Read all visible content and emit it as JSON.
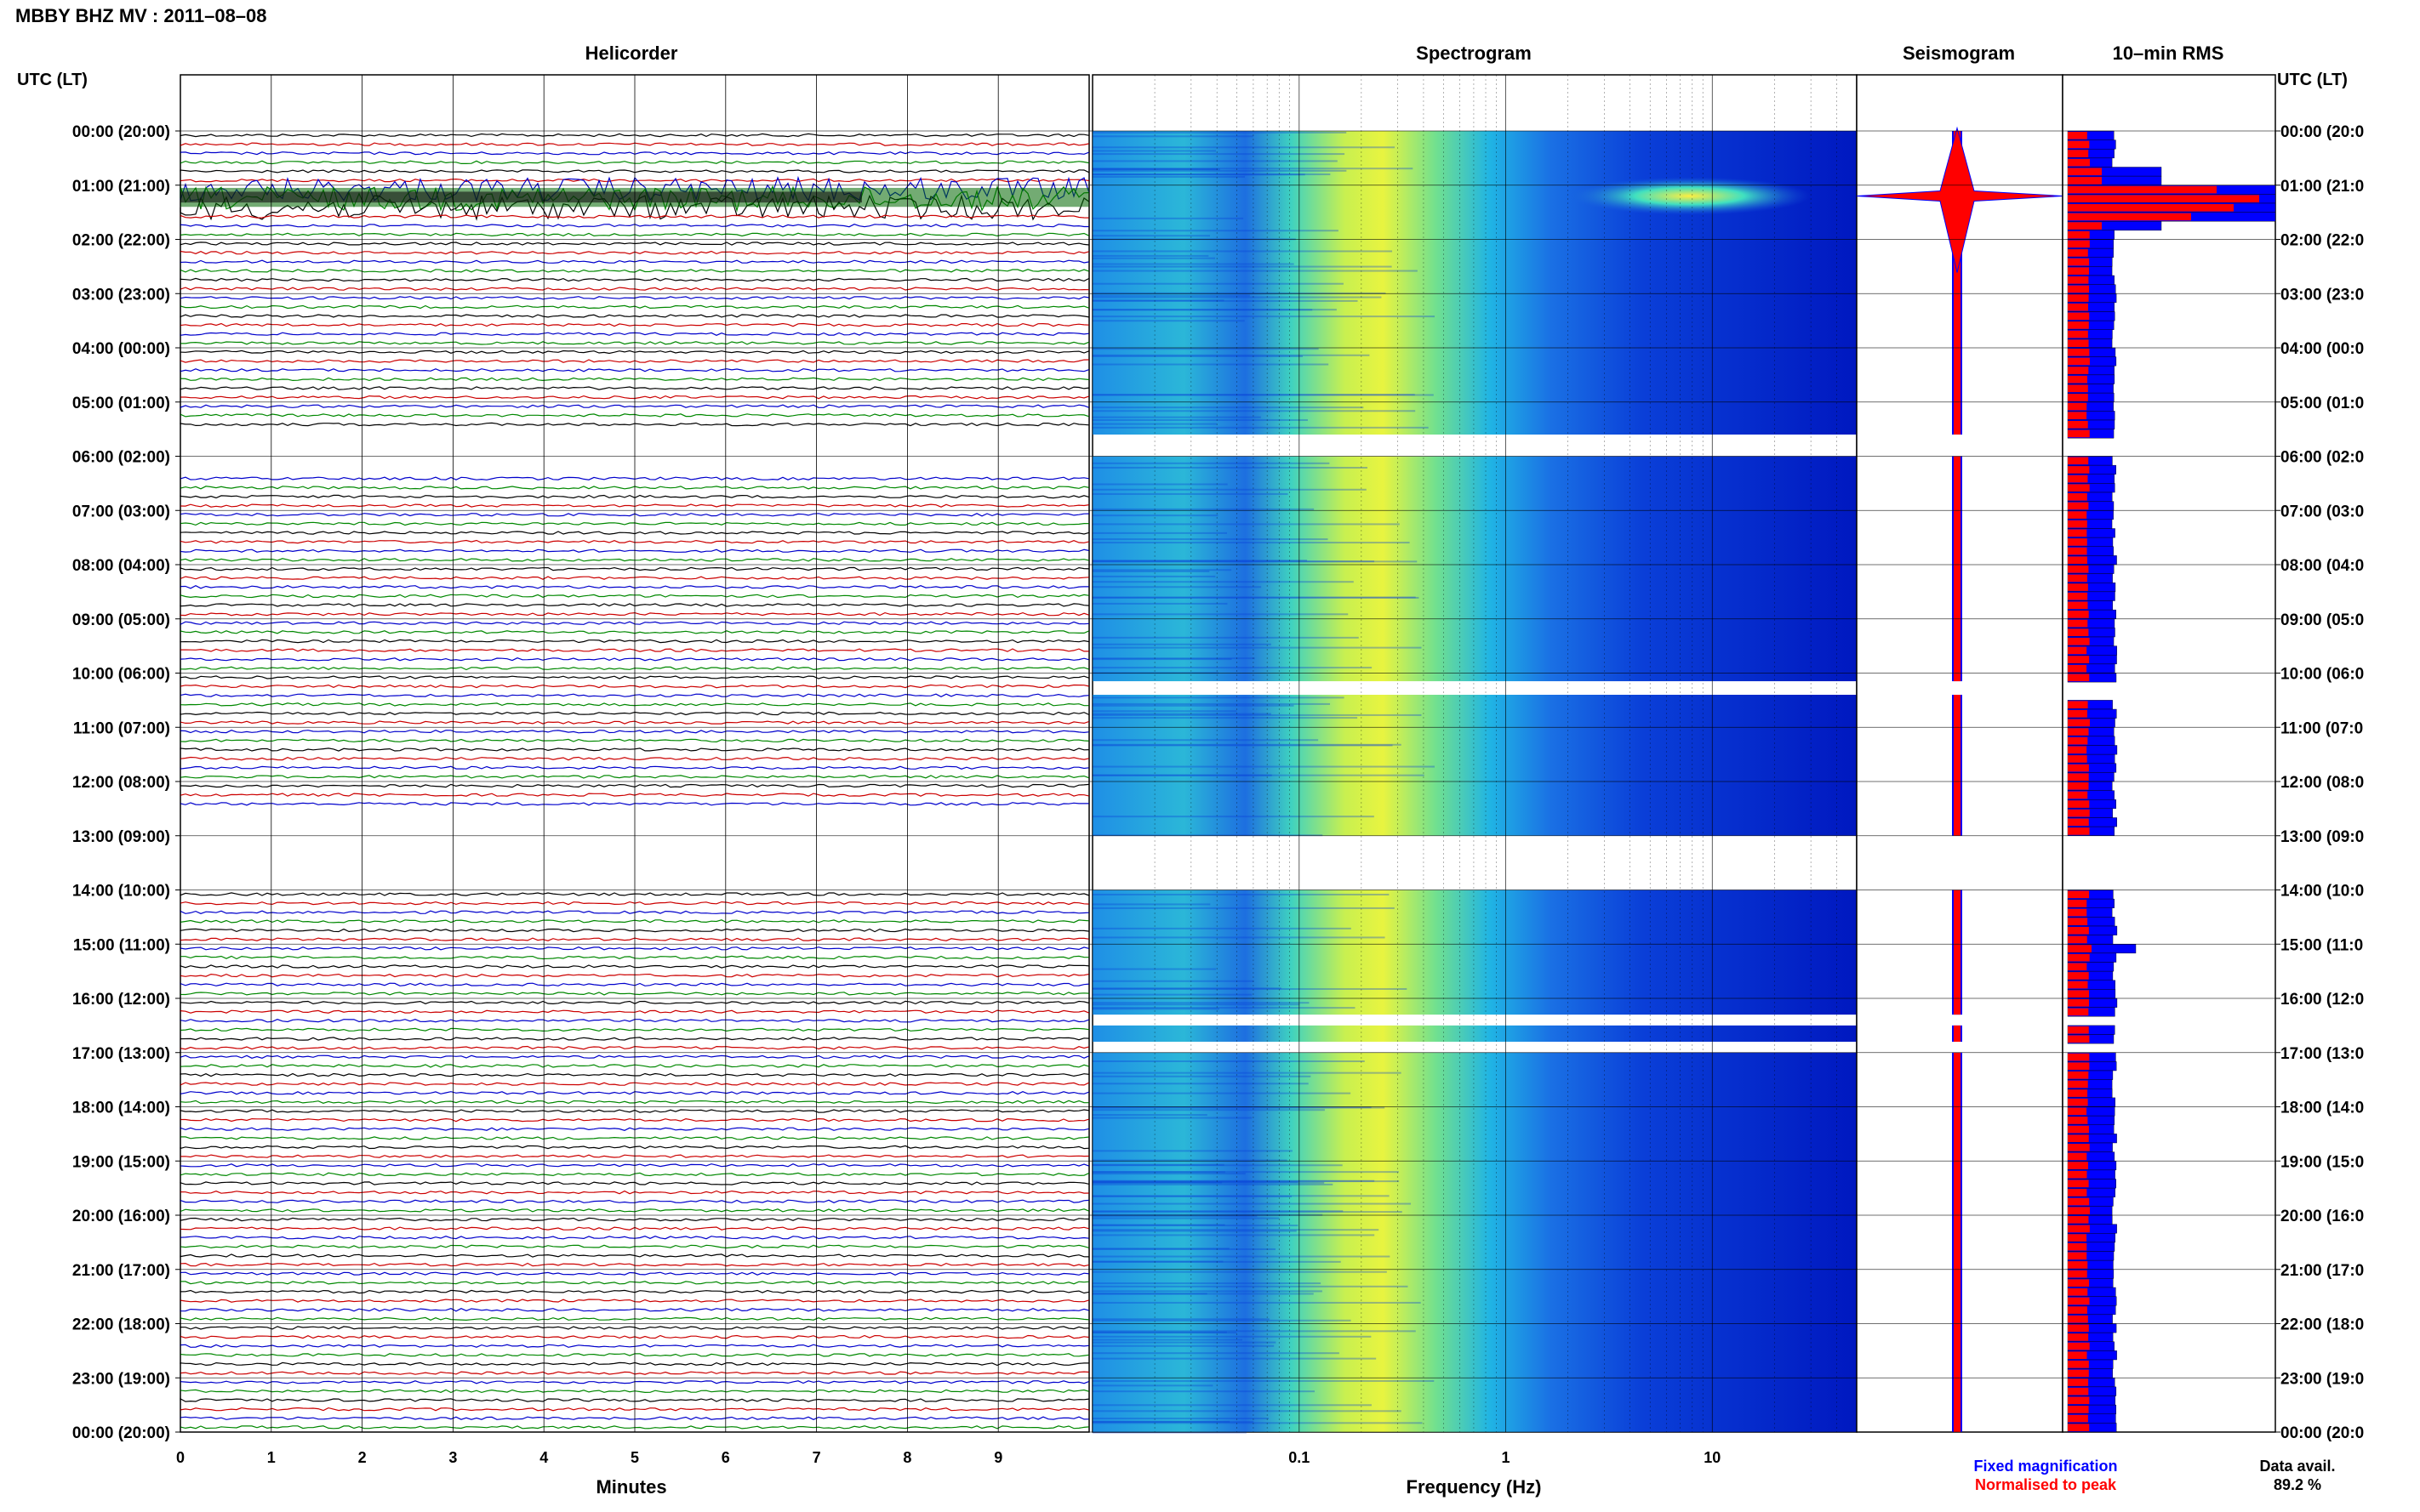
{
  "title": "MBBY BHZ MV : 2011–08–08",
  "utc_label": "UTC (LT)",
  "panels": {
    "helicorder": "Helicorder",
    "spectrogram": "Spectrogram",
    "seismogram": "Seismogram",
    "rms": "10–min RMS"
  },
  "hour_labels": [
    "00:00 (20:00)",
    "01:00 (21:00)",
    "02:00 (22:00)",
    "03:00 (23:00)",
    "04:00 (00:00)",
    "05:00 (01:00)",
    "06:00 (02:00)",
    "07:00 (03:00)",
    "08:00 (04:00)",
    "09:00 (05:00)",
    "10:00 (06:00)",
    "11:00 (07:00)",
    "12:00 (08:00)",
    "13:00 (09:00)",
    "14:00 (10:00)",
    "15:00 (11:00)",
    "16:00 (12:00)",
    "17:00 (13:00)",
    "18:00 (14:00)",
    "19:00 (15:00)",
    "20:00 (16:00)",
    "21:00 (17:00)",
    "22:00 (18:00)",
    "23:00 (19:00)",
    "00:00 (20:00)"
  ],
  "right_hour_labels": [
    "00:00 (20:0",
    "01:00 (21:0",
    "02:00 (22:0",
    "03:00 (23:0",
    "04:00 (00:0",
    "05:00 (01:0",
    "06:00 (02:0",
    "07:00 (03:0",
    "08:00 (04:0",
    "09:00 (05:0",
    "10:00 (06:0",
    "11:00 (07:0",
    "12:00 (08:0",
    "13:00 (09:0",
    "14:00 (10:0",
    "15:00 (11:0",
    "16:00 (12:0",
    "17:00 (13:0",
    "18:00 (14:0",
    "19:00 (15:0",
    "20:00 (16:0",
    "21:00 (17:0",
    "22:00 (18:0",
    "23:00 (19:0",
    "00:00 (20:0"
  ],
  "chart_data": {
    "type": "heatmap",
    "helicorder": {
      "xlabel": "Minutes",
      "x_ticks": [
        "0",
        "1",
        "2",
        "3",
        "4",
        "5",
        "6",
        "7",
        "8",
        "9"
      ],
      "xlim": [
        0,
        10
      ],
      "trace_colors": [
        "#000000",
        "#cc0000",
        "#0000cc",
        "#008800"
      ],
      "gaps_utc_hours": [
        [
          5.5,
          6.2
        ],
        [
          12.5,
          14.0
        ]
      ]
    },
    "spectrogram": {
      "xlabel": "Frequency (Hz)",
      "x_ticks": [
        "0.1",
        "1",
        "10"
      ],
      "x_scale": "log",
      "xlim": [
        0.01,
        50
      ],
      "data_gaps_utc_hours": [
        [
          5.6,
          6.0
        ],
        [
          10.15,
          10.4
        ],
        [
          13.0,
          14.0
        ],
        [
          16.3,
          16.5
        ],
        [
          16.8,
          17.0
        ]
      ],
      "event_utc_hour": 1.2,
      "event_freq_band_hz": [
        2,
        30
      ]
    },
    "seismogram": {
      "event_utc_hour": 1.2
    },
    "rms": {
      "series": [
        {
          "name": "Fixed magnification",
          "color": "#0000ff"
        },
        {
          "name": "Normalised to peak",
          "color": "#ff0000"
        }
      ],
      "peak_utc_hour": 1.2,
      "secondary_peak_utc_hour": 15.0
    },
    "data_availability": "89.2 %",
    "data_availability_label": "Data avail."
  },
  "colors": {
    "blue": "#0000ff",
    "red": "#ff0000"
  }
}
